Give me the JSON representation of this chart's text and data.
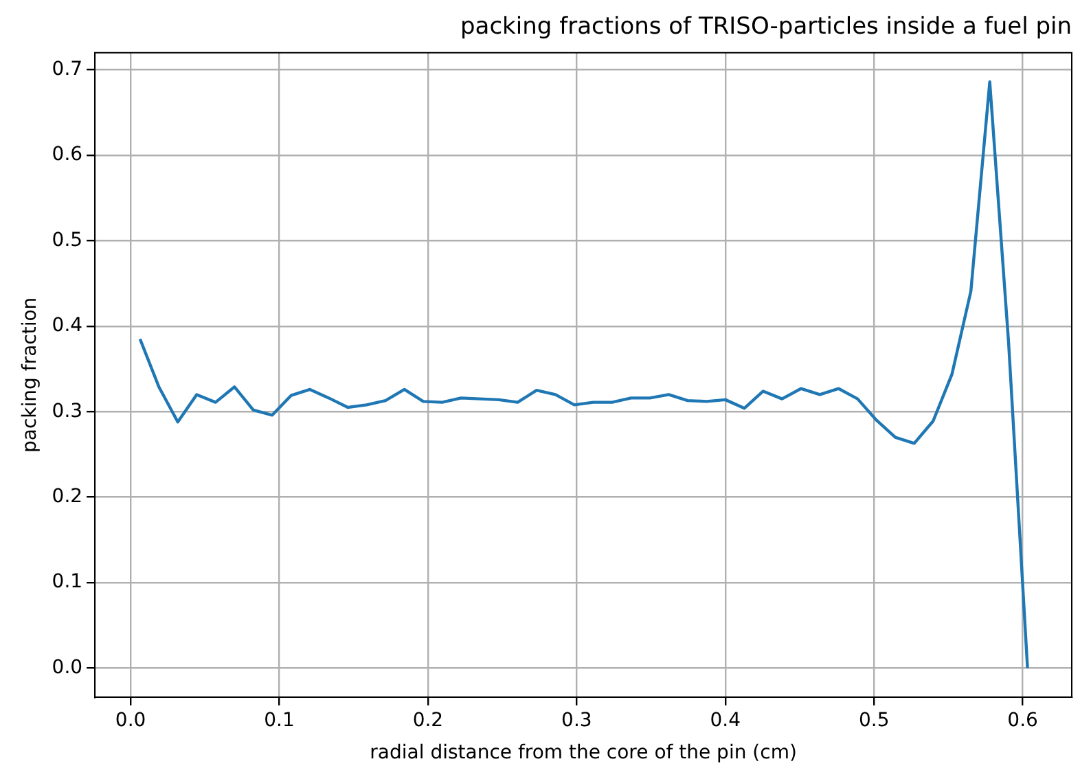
{
  "chart_data": {
    "type": "line",
    "title": "packing fractions of TRISO-particles inside a fuel pin",
    "xlabel": "radial distance from the core of the pin (cm)",
    "ylabel": "packing fraction",
    "x": [
      0.00635,
      0.01905,
      0.03175,
      0.04445,
      0.05715,
      0.06985,
      0.08255,
      0.09525,
      0.10795,
      0.12065,
      0.13335,
      0.14605,
      0.15875,
      0.17145,
      0.18415,
      0.19685,
      0.20955,
      0.22225,
      0.23495,
      0.24765,
      0.26035,
      0.27305,
      0.28575,
      0.29845,
      0.31115,
      0.32385,
      0.33655,
      0.34925,
      0.36195,
      0.37465,
      0.38735,
      0.40005,
      0.41275,
      0.42545,
      0.43815,
      0.45085,
      0.46355,
      0.47625,
      0.48895,
      0.50165,
      0.51435,
      0.52705,
      0.53975,
      0.55245,
      0.56515,
      0.57785,
      0.59055,
      0.60325
    ],
    "series": [
      {
        "color": "#1f77b4",
        "values": [
          0.385,
          0.329,
          0.288,
          0.32,
          0.311,
          0.329,
          0.302,
          0.296,
          0.319,
          0.326,
          0.316,
          0.305,
          0.308,
          0.313,
          0.326,
          0.312,
          0.311,
          0.316,
          0.315,
          0.314,
          0.311,
          0.325,
          0.32,
          0.308,
          0.311,
          0.311,
          0.316,
          0.316,
          0.32,
          0.313,
          0.312,
          0.314,
          0.304,
          0.324,
          0.315,
          0.327,
          0.32,
          0.327,
          0.315,
          0.29,
          0.27,
          0.263,
          0.289,
          0.344,
          0.441,
          0.686,
          0.38,
          0
        ]
      }
    ],
    "xlim": [
      -0.024,
      0.633
    ],
    "ylim": [
      -0.034,
      0.72
    ],
    "xticks": [
      {
        "value": 0,
        "label": "0.0"
      },
      {
        "value": 0.1,
        "label": "0.1"
      },
      0.2,
      0.3,
      0.4,
      0.5,
      0.6
    ],
    "yticks": [
      {
        "value": 0,
        "label": "0.0"
      },
      0.1,
      0.2,
      0.3,
      0.4,
      0.5,
      0.6,
      0.7
    ],
    "grid": true,
    "legend": false,
    "marker": "none",
    "line_style": "solid"
  }
}
